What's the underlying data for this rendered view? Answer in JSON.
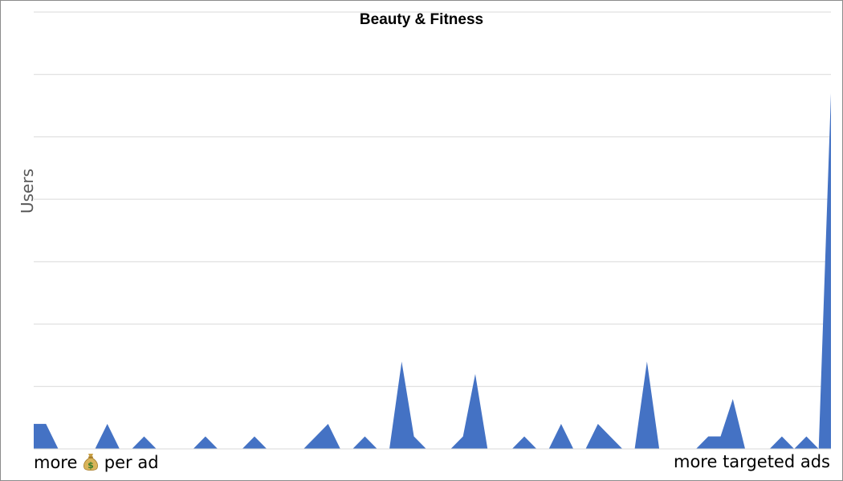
{
  "chart_data": {
    "type": "area",
    "title": "Beauty & Fitness",
    "ylabel": "Users",
    "x_left_label": "more",
    "x_left_icon": "money-bag-icon",
    "x_left_label_suffix": "per ad",
    "x_right_label": "more targeted ads",
    "ylim": [
      0,
      7
    ],
    "grid": true,
    "color": "#4472C4",
    "values": [
      0.4,
      0.4,
      0,
      0,
      0,
      0,
      0.4,
      0,
      0,
      0.2,
      0,
      0,
      0,
      0,
      0.2,
      0,
      0,
      0,
      0.2,
      0,
      0,
      0,
      0,
      0.2,
      0.4,
      0,
      0,
      0.2,
      0,
      0,
      1.4,
      0.2,
      0,
      0,
      0,
      0.2,
      1.2,
      0,
      0,
      0,
      0.2,
      0,
      0,
      0.4,
      0,
      0,
      0.4,
      0.2,
      0,
      0,
      1.4,
      0,
      0,
      0,
      0,
      0.2,
      0.2,
      0.8,
      0,
      0,
      0,
      0.2,
      0,
      0.2,
      0,
      5.7
    ]
  }
}
